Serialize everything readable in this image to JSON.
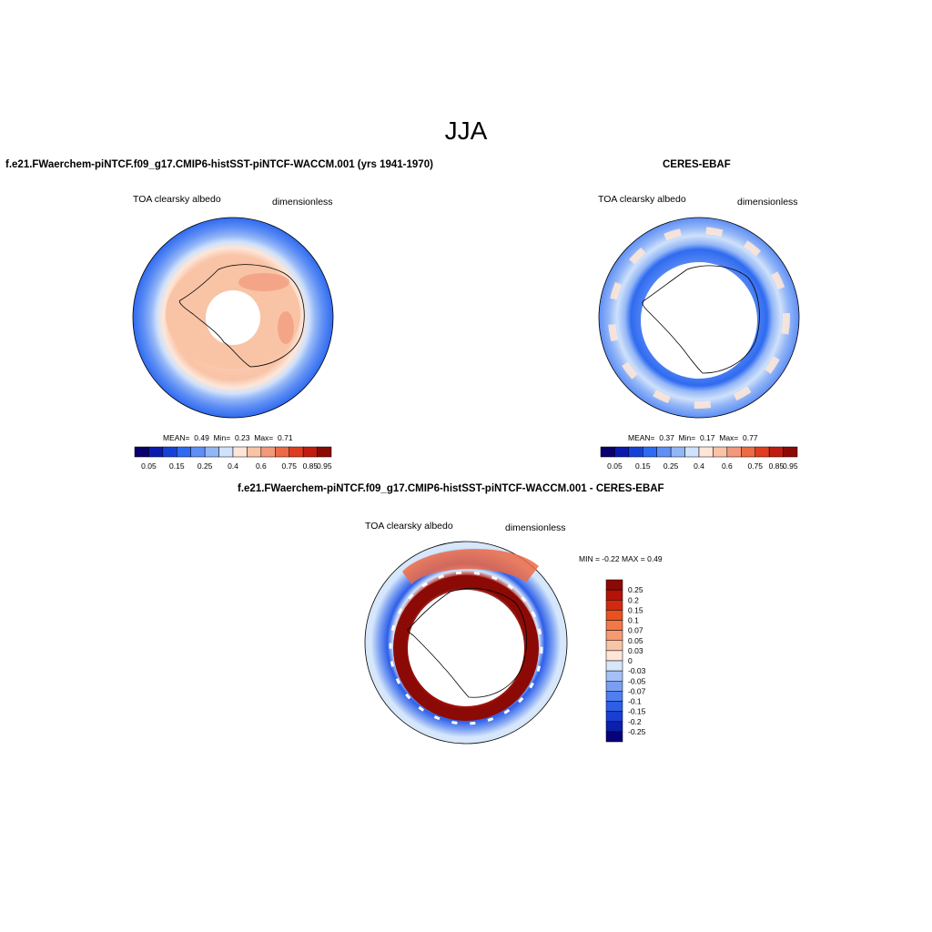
{
  "title": "JJA",
  "panels": [
    {
      "title": "f.e21.FWaerchem-piNTCF.f09_g17.CMIP6-histSST-piNTCF-WACCM.001 (yrs 1941-1970)",
      "left_label": "TOA clearsky albedo",
      "right_label": "dimensionless",
      "stats": {
        "mean_label": "MEAN=",
        "mean": "0.49",
        "min_label": "Min=",
        "min": "0.23",
        "max_label": "Max=",
        "max": "0.71"
      }
    },
    {
      "title": "CERES-EBAF",
      "left_label": "TOA clearsky albedo",
      "right_label": "dimensionless",
      "stats": {
        "mean_label": "MEAN=",
        "mean": "0.37",
        "min_label": "Min=",
        "min": "0.17",
        "max_label": "Max=",
        "max": "0.77"
      }
    }
  ],
  "difference": {
    "title": "f.e21.FWaerchem-piNTCF.f09_g17.CMIP6-histSST-piNTCF-WACCM.001 - CERES-EBAF",
    "left_label": "TOA clearsky albedo",
    "right_label": "dimensionless",
    "minmax": "MIN =  -0.22 MAX =   0.49"
  },
  "colorbar_horizontal": {
    "colors": [
      "#08006b",
      "#0a1aad",
      "#1542d6",
      "#2f6bf0",
      "#5f8ff5",
      "#93b6f7",
      "#cfe1fb",
      "#fde6d8",
      "#f9c3a6",
      "#f3987a",
      "#ec6a45",
      "#df3d1f",
      "#c01d10",
      "#8c0a05"
    ],
    "ticks": [
      "0.05",
      "0.15",
      "0.25",
      "0.4",
      "0.6",
      "0.75",
      "0.85",
      "0.95"
    ]
  },
  "colorbar_vertical": {
    "colors": [
      "#8c0a05",
      "#b41308",
      "#d22a10",
      "#e9521f",
      "#f2784a",
      "#f59a73",
      "#f8c4a8",
      "#fde6d8",
      "#d6e6fb",
      "#a4c0f6",
      "#7a9ff2",
      "#4f7ef0",
      "#2d5ee8",
      "#1a3ed2",
      "#0a1faa",
      "#06037a"
    ],
    "ticks": [
      "0.25",
      "0.2",
      "0.15",
      "0.1",
      "0.07",
      "0.05",
      "0.03",
      "0",
      "-0.03",
      "-0.05",
      "-0.07",
      "-0.1",
      "-0.15",
      "-0.2",
      "-0.25"
    ]
  }
}
